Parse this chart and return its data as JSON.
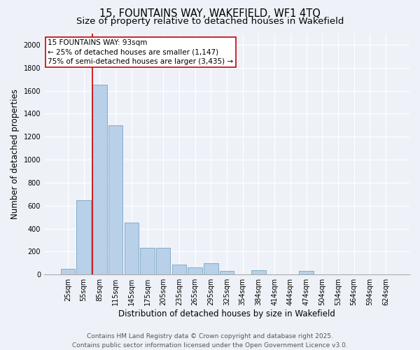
{
  "title_line1": "15, FOUNTAINS WAY, WAKEFIELD, WF1 4TQ",
  "title_line2": "Size of property relative to detached houses in Wakefield",
  "xlabel": "Distribution of detached houses by size in Wakefield",
  "ylabel": "Number of detached properties",
  "categories": [
    "25sqm",
    "55sqm",
    "85sqm",
    "115sqm",
    "145sqm",
    "175sqm",
    "205sqm",
    "235sqm",
    "265sqm",
    "295sqm",
    "325sqm",
    "354sqm",
    "384sqm",
    "414sqm",
    "444sqm",
    "474sqm",
    "504sqm",
    "534sqm",
    "564sqm",
    "594sqm",
    "624sqm"
  ],
  "values": [
    50,
    650,
    1650,
    1300,
    450,
    235,
    235,
    85,
    60,
    100,
    30,
    0,
    35,
    0,
    0,
    30,
    0,
    0,
    0,
    0,
    0
  ],
  "bar_color": "#b8d0e8",
  "bar_edge_color": "#6699bb",
  "ylim": [
    0,
    2100
  ],
  "yticks": [
    0,
    200,
    400,
    600,
    800,
    1000,
    1200,
    1400,
    1600,
    1800,
    2000
  ],
  "property_line_color": "#cc0000",
  "property_line_bar_index": 2,
  "annotation_text": "15 FOUNTAINS WAY: 93sqm\n← 25% of detached houses are smaller (1,147)\n75% of semi-detached houses are larger (3,435) →",
  "annotation_box_color": "#cc0000",
  "footer_line1": "Contains HM Land Registry data © Crown copyright and database right 2025.",
  "footer_line2": "Contains public sector information licensed under the Open Government Licence v3.0.",
  "background_color": "#eef2f8",
  "grid_color": "#ffffff",
  "title_fontsize": 10.5,
  "subtitle_fontsize": 9.5,
  "ylabel_fontsize": 8.5,
  "xlabel_fontsize": 8.5,
  "tick_fontsize": 7,
  "annotation_fontsize": 7.5,
  "footer_fontsize": 6.5
}
